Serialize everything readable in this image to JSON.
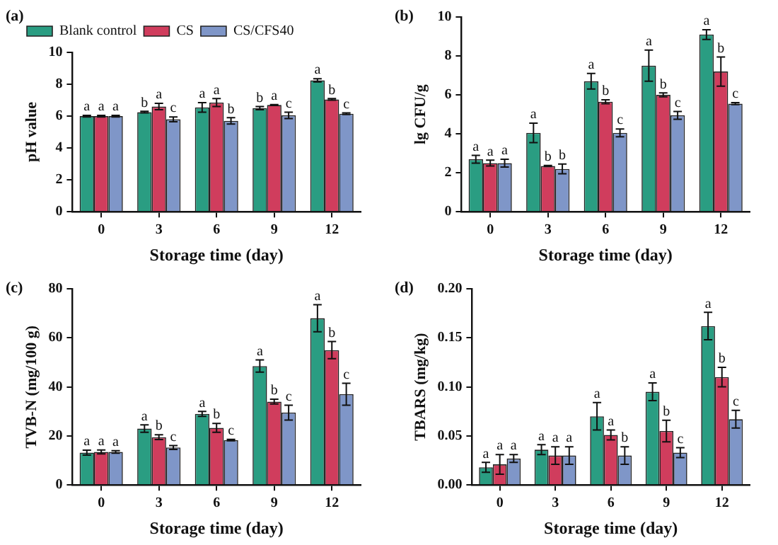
{
  "chart_data": [
    {
      "type": "bar",
      "title": "(a)",
      "xlabel": "Storage time (day)",
      "ylabel": "pH value",
      "categories": [
        "0",
        "3",
        "6",
        "9",
        "12"
      ],
      "ylim": [
        0,
        10
      ],
      "yticks": [
        0,
        2,
        4,
        6,
        8,
        10
      ],
      "legend": "top left",
      "series": [
        {
          "name": "Blank control",
          "color": "#2a9d82",
          "values": [
            6.0,
            6.25,
            6.55,
            6.5,
            8.25
          ],
          "errors": [
            0.05,
            0.05,
            0.3,
            0.1,
            0.1
          ],
          "value_labels": [
            "a",
            "b",
            "a",
            "b",
            "a"
          ]
        },
        {
          "name": "CS",
          "color": "#d03d5d",
          "values": [
            6.0,
            6.6,
            6.85,
            6.7,
            7.05
          ],
          "errors": [
            0.05,
            0.2,
            0.25,
            0.03,
            0.05
          ],
          "value_labels": [
            "a",
            "a",
            "a",
            "a",
            "b"
          ]
        },
        {
          "name": "CS/CFS40",
          "color": "#7f96c8",
          "values": [
            6.0,
            5.8,
            5.7,
            6.05,
            6.15
          ],
          "errors": [
            0.05,
            0.15,
            0.2,
            0.2,
            0.05
          ],
          "value_labels": [
            "a",
            "c",
            "b",
            "c",
            "c"
          ]
        }
      ]
    },
    {
      "type": "bar",
      "title": "(b)",
      "xlabel": "Storage time (day)",
      "ylabel": "lg CFU/g",
      "categories": [
        "0",
        "3",
        "6",
        "9",
        "12"
      ],
      "ylim": [
        0,
        10
      ],
      "yticks": [
        0,
        2,
        4,
        6,
        8,
        10
      ],
      "series": [
        {
          "color": "#2a9d82",
          "values": [
            2.7,
            4.05,
            6.7,
            7.5,
            9.1
          ],
          "errors": [
            0.2,
            0.5,
            0.4,
            0.8,
            0.25
          ],
          "value_labels": [
            "a",
            "a",
            "a",
            "a",
            "a"
          ]
        },
        {
          "color": "#d03d5d",
          "values": [
            2.5,
            2.35,
            5.65,
            6.0,
            7.2
          ],
          "errors": [
            0.15,
            0.03,
            0.1,
            0.1,
            0.75
          ],
          "value_labels": [
            "a",
            "b",
            "b",
            "b",
            "b"
          ]
        },
        {
          "color": "#7f96c8",
          "values": [
            2.5,
            2.2,
            4.05,
            4.95,
            5.55
          ],
          "errors": [
            0.2,
            0.25,
            0.2,
            0.2,
            0.05
          ],
          "value_labels": [
            "a",
            "b",
            "c",
            "c",
            "c"
          ]
        }
      ]
    },
    {
      "type": "bar",
      "title": "(c)",
      "xlabel": "Storage time (day)",
      "ylabel": "TVB-N (mg/100 g)",
      "categories": [
        "0",
        "3",
        "6",
        "9",
        "12"
      ],
      "ylim": [
        0,
        80
      ],
      "yticks": [
        0,
        20,
        40,
        60,
        80
      ],
      "series": [
        {
          "color": "#2a9d82",
          "values": [
            13.2,
            23,
            29,
            48.5,
            68
          ],
          "errors": [
            1,
            1.5,
            1,
            2.5,
            5.5
          ],
          "value_labels": [
            "a",
            "a",
            "a",
            "a",
            "a"
          ]
        },
        {
          "color": "#d03d5d",
          "values": [
            13.5,
            19.5,
            23.3,
            34,
            55
          ],
          "errors": [
            0.8,
            1,
            1.8,
            1,
            3.5
          ],
          "value_labels": [
            "a",
            "b",
            "b",
            "b",
            "b"
          ]
        },
        {
          "color": "#7f96c8",
          "values": [
            13.5,
            15.3,
            18.3,
            29.5,
            37
          ],
          "errors": [
            0.5,
            0.8,
            0.3,
            3,
            4.5
          ],
          "value_labels": [
            "a",
            "c",
            "c",
            "c",
            "c"
          ]
        }
      ]
    },
    {
      "type": "bar",
      "title": "(d)",
      "xlabel": "Storage time (day)",
      "ylabel": "TBARS (mg/kg)",
      "categories": [
        "0",
        "3",
        "6",
        "9",
        "12"
      ],
      "ylim": [
        0,
        0.2
      ],
      "yticks": [
        {
          "value": 0,
          "label": "0.00"
        },
        {
          "value": 0.05,
          "label": "0.05"
        },
        {
          "value": 0.1,
          "label": "0.10"
        },
        {
          "value": 0.15,
          "label": "0.15"
        },
        {
          "value": 0.2,
          "label": "0.20"
        }
      ],
      "series": [
        {
          "color": "#2a9d82",
          "values": [
            0.018,
            0.036,
            0.07,
            0.095,
            0.162
          ],
          "errors": [
            0.005,
            0.005,
            0.014,
            0.009,
            0.014
          ],
          "value_labels": [
            "a",
            "a",
            "a",
            "a",
            "a"
          ]
        },
        {
          "color": "#d03d5d",
          "values": [
            0.021,
            0.03,
            0.051,
            0.055,
            0.11
          ],
          "errors": [
            0.01,
            0.009,
            0.005,
            0.011,
            0.01
          ],
          "value_labels": [
            "a",
            "a",
            "a",
            "b",
            "b"
          ]
        },
        {
          "color": "#7f96c8",
          "values": [
            0.027,
            0.03,
            0.03,
            0.033,
            0.067
          ],
          "errors": [
            0.004,
            0.009,
            0.009,
            0.005,
            0.009
          ],
          "value_labels": [
            "a",
            "a",
            "b",
            "c",
            "c"
          ]
        }
      ]
    }
  ]
}
